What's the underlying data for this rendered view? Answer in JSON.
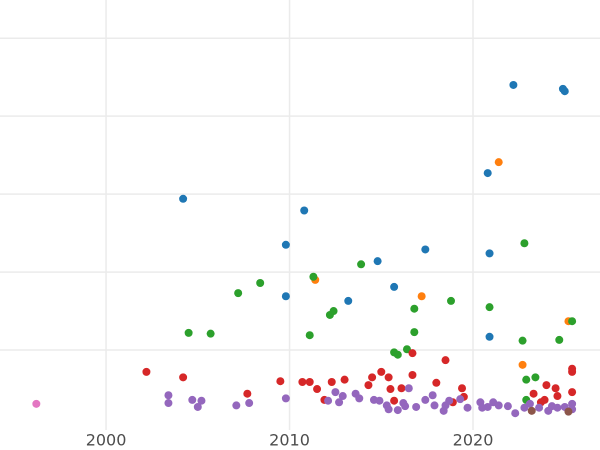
{
  "chart_data": {
    "type": "scatter",
    "xlim": [
      1994.22,
      2026.92
    ],
    "ylim": [
      0,
      5.49
    ],
    "xticks": [
      2000,
      2010,
      2020
    ],
    "ygrid": [
      1,
      2,
      3,
      4,
      5
    ],
    "grid": true,
    "series": [
      {
        "color": "#1f77b4",
        "x": [
          2004.2,
          2010.8,
          2009.8,
          2009.8,
          2014.8,
          2013.2,
          2017.4,
          2015.7,
          2022.2,
          2024.9,
          2025.0,
          2020.8,
          2020.9,
          2020.9
        ],
        "values": [
          2.94,
          2.79,
          2.35,
          1.69,
          2.14,
          1.63,
          2.29,
          1.81,
          4.4,
          4.35,
          4.32,
          3.27,
          2.24,
          1.17
        ]
      },
      {
        "color": "#ff7f0e",
        "x": [
          2011.4,
          2017.2,
          2021.4,
          2022.7,
          2025.2
        ],
        "values": [
          1.9,
          1.69,
          3.41,
          0.81,
          1.37
        ]
      },
      {
        "color": "#2ca02c",
        "x": [
          2004.5,
          2005.7,
          2007.2,
          2008.4,
          2011.3,
          2011.1,
          2012.2,
          2012.4,
          2013.9,
          2015.7,
          2015.9,
          2016.4,
          2016.8,
          2016.8,
          2018.8,
          2020.9,
          2022.8,
          2022.7,
          2022.9,
          2023.4,
          2024.7,
          2025.4,
          2022.9
        ],
        "values": [
          1.22,
          1.21,
          1.73,
          1.86,
          1.94,
          1.19,
          1.45,
          1.5,
          2.1,
          0.97,
          0.94,
          1.01,
          1.53,
          1.23,
          1.63,
          1.55,
          2.37,
          1.12,
          0.62,
          0.65,
          1.13,
          1.37,
          0.36
        ]
      },
      {
        "color": "#d62728",
        "x": [
          2002.2,
          2004.2,
          2007.7,
          2009.5,
          2010.7,
          2011.1,
          2011.5,
          2012.3,
          2013.0,
          2011.9,
          2014.3,
          2014.5,
          2015.0,
          2015.4,
          2015.5,
          2016.1,
          2016.7,
          2016.7,
          2015.7,
          2018.0,
          2018.5,
          2018.9,
          2019.4,
          2019.5,
          2023.3,
          2024.0,
          2024.5,
          2024.6,
          2023.9,
          2025.4,
          2025.4,
          2025.4,
          2023.7
        ],
        "values": [
          0.72,
          0.65,
          0.44,
          0.6,
          0.59,
          0.59,
          0.5,
          0.59,
          0.62,
          0.36,
          0.55,
          0.65,
          0.72,
          0.65,
          0.5,
          0.51,
          0.96,
          0.68,
          0.35,
          0.58,
          0.87,
          0.33,
          0.51,
          0.4,
          0.44,
          0.55,
          0.51,
          0.41,
          0.36,
          0.76,
          0.72,
          0.46,
          0.33
        ]
      },
      {
        "color": "#9467bd",
        "x": [
          2003.4,
          2003.4,
          2004.7,
          2005.0,
          2005.2,
          2007.1,
          2007.8,
          2009.8,
          2012.1,
          2012.5,
          2012.7,
          2012.9,
          2013.6,
          2013.8,
          2014.6,
          2014.9,
          2015.3,
          2015.4,
          2015.9,
          2016.3,
          2016.5,
          2016.2,
          2016.9,
          2017.4,
          2017.9,
          2017.8,
          2018.4,
          2018.5,
          2018.7,
          2019.3,
          2019.7,
          2020.4,
          2020.5,
          2020.8,
          2021.1,
          2021.4,
          2021.9,
          2022.3,
          2022.8,
          2023.1,
          2023.6,
          2024.1,
          2024.3,
          2024.6,
          2025.0,
          2025.4,
          2025.4
        ],
        "values": [
          0.42,
          0.32,
          0.36,
          0.27,
          0.35,
          0.29,
          0.32,
          0.38,
          0.35,
          0.46,
          0.33,
          0.41,
          0.44,
          0.38,
          0.36,
          0.35,
          0.29,
          0.24,
          0.23,
          0.28,
          0.51,
          0.32,
          0.27,
          0.36,
          0.29,
          0.42,
          0.22,
          0.29,
          0.35,
          0.37,
          0.26,
          0.33,
          0.26,
          0.27,
          0.33,
          0.29,
          0.28,
          0.19,
          0.26,
          0.31,
          0.26,
          0.22,
          0.28,
          0.26,
          0.27,
          0.31,
          0.24
        ]
      },
      {
        "color": "#8c564b",
        "x": [
          2023.2,
          2025.2
        ],
        "values": [
          0.22,
          0.21
        ]
      },
      {
        "color": "#e377c2",
        "x": [
          1996.2
        ],
        "values": [
          0.31
        ]
      }
    ]
  }
}
